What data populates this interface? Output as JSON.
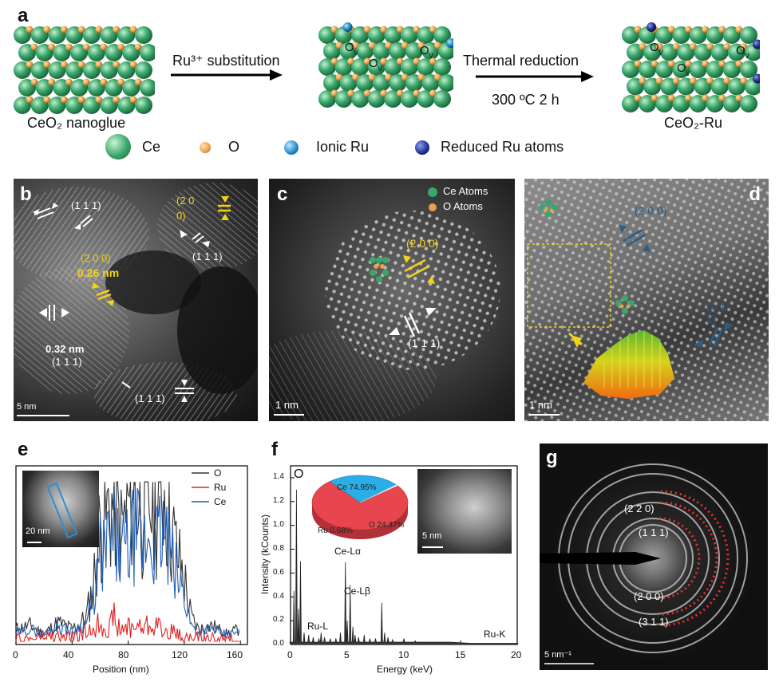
{
  "panel_a": {
    "letter": "a",
    "nanoglue_label": "CeO₂ nanoglue",
    "step1_label": "Ru³⁺ substitution",
    "step2_label": "Thermal reduction",
    "step2_sub": "300 ºC 2 h",
    "product_label": "CeO₂-Ru",
    "ov_label": "O",
    "ov_sub": "V",
    "legend": [
      {
        "label": "Ce",
        "color": "#3aa66a"
      },
      {
        "label": "O",
        "color": "#e8a04a"
      },
      {
        "label": "Ionic Ru",
        "color": "#1f88c8"
      },
      {
        "label": "Reduced Ru atoms",
        "color": "#1d2f8c"
      }
    ]
  },
  "panel_b": {
    "letter": "b",
    "labels": [
      "(1 1 1)",
      "(2 0 0)",
      "(2 0 0)",
      "0.26 nm",
      "(1 1 1)",
      "0.32 nm",
      "(1 1 1)",
      "(1 1 1)"
    ],
    "scale": "5 nm"
  },
  "panel_c": {
    "letter": "c",
    "legend": [
      "Ce Atoms",
      "O Atoms"
    ],
    "labels": [
      "(2 0 0)",
      "(1 1 1)"
    ],
    "scale": "1 nm"
  },
  "panel_d": {
    "letter": "d",
    "labels": [
      "(2 0 0)",
      "(1 1 1)"
    ],
    "scale": "1 nm"
  },
  "panel_e": {
    "letter": "e",
    "inset_scale": "20 nm",
    "xlabel": "Position (nm)",
    "xticks": [
      "0",
      "40",
      "80",
      "120",
      "160"
    ],
    "legend": [
      {
        "name": "O",
        "color": "#333333"
      },
      {
        "name": "Ru",
        "color": "#e02020"
      },
      {
        "name": "Ce",
        "color": "#1f5fb8"
      }
    ]
  },
  "panel_f": {
    "letter": "f",
    "xlabel": "Energy (keV)",
    "ylabel": "Intensity (kCounts)",
    "xticks": [
      "0",
      "5",
      "10",
      "15",
      "20"
    ],
    "yticks": [
      "0.0",
      "0.2",
      "0.4",
      "0.6",
      "0.8",
      "1.0",
      "1.2",
      "1.4"
    ],
    "peak_labels": [
      "O",
      "Ce-Lα",
      "Ce-Lβ",
      "Ru-L",
      "Ru-K"
    ],
    "pie": [
      {
        "label": "Ce 74.95%",
        "value": 74.95,
        "color": "#e8464f"
      },
      {
        "label": "O 24.37%",
        "value": 24.37,
        "color": "#2aaee6"
      },
      {
        "label": "Ru 0.68%",
        "value": 0.68,
        "color": "#ffffff"
      }
    ],
    "inset_scale": "5 nm"
  },
  "panel_g": {
    "letter": "g",
    "labels": [
      "(2 2 0)",
      "(1 1 1)",
      "(2 0 0)",
      "(3 1 1)"
    ],
    "scale": "5 nm⁻¹"
  },
  "chart_data": [
    {
      "type": "line",
      "panel": "e",
      "xlabel": "Position (nm)",
      "xlim": [
        0,
        165
      ],
      "series": [
        {
          "name": "O",
          "x": [
            0,
            10,
            20,
            30,
            40,
            50,
            55,
            60,
            65,
            70,
            75,
            80,
            85,
            90,
            95,
            100,
            105,
            110,
            115,
            120,
            125,
            130,
            140,
            150,
            160
          ],
          "values": [
            0.08,
            0.1,
            0.05,
            0.12,
            0.08,
            0.15,
            0.35,
            0.75,
            0.8,
            0.9,
            0.7,
            0.85,
            0.95,
            0.8,
            0.9,
            0.85,
            1.0,
            0.75,
            0.55,
            0.4,
            0.15,
            0.08,
            0.1,
            0.05,
            0.08
          ]
        },
        {
          "name": "Ru",
          "x": [
            0,
            20,
            40,
            50,
            60,
            65,
            70,
            75,
            80,
            90,
            100,
            105,
            110,
            120,
            140,
            160
          ],
          "values": [
            0.0,
            0.03,
            0.02,
            0.05,
            0.12,
            0.08,
            0.14,
            0.06,
            0.1,
            0.09,
            0.12,
            0.05,
            0.07,
            0.02,
            0.01,
            0.0
          ]
        },
        {
          "name": "Ce",
          "x": [
            0,
            10,
            20,
            30,
            40,
            50,
            55,
            60,
            65,
            70,
            75,
            80,
            85,
            90,
            95,
            100,
            105,
            110,
            115,
            120,
            125,
            130,
            140,
            150,
            160
          ],
          "values": [
            0.05,
            0.08,
            0.04,
            0.1,
            0.06,
            0.12,
            0.25,
            0.55,
            0.6,
            0.65,
            0.55,
            0.6,
            0.7,
            0.6,
            0.68,
            0.62,
            0.7,
            0.55,
            0.4,
            0.3,
            0.1,
            0.06,
            0.08,
            0.04,
            0.06
          ]
        }
      ]
    },
    {
      "type": "area",
      "panel": "f",
      "xlabel": "Energy (keV)",
      "ylabel": "Intensity (kCounts)",
      "xlim": [
        0,
        20
      ],
      "ylim": [
        0,
        1.5
      ],
      "series": [
        {
          "x": [
            0,
            0.3,
            0.52,
            0.7,
            0.88,
            1.2,
            1.6,
            2.0,
            2.5,
            2.7,
            3.0,
            3.5,
            4.0,
            4.4,
            4.84,
            5.0,
            5.26,
            5.5,
            5.7,
            6.0,
            6.5,
            7.0,
            7.5,
            8.05,
            8.3,
            8.6,
            9.0,
            10.0,
            11.0,
            12.0,
            14.0,
            16.0,
            18.0,
            20.0
          ],
          "values": [
            0.02,
            0.45,
            1.3,
            0.3,
            0.7,
            0.1,
            0.08,
            0.06,
            0.05,
            0.1,
            0.06,
            0.05,
            0.05,
            0.1,
            0.69,
            0.2,
            0.5,
            0.15,
            0.08,
            0.06,
            0.08,
            0.05,
            0.05,
            0.35,
            0.1,
            0.06,
            0.04,
            0.05,
            0.03,
            0.02,
            0.02,
            0.01,
            0.01,
            0.01
          ]
        }
      ]
    },
    {
      "type": "pie",
      "panel": "f-inset",
      "categories": [
        "Ce",
        "O",
        "Ru"
      ],
      "values": [
        74.95,
        24.37,
        0.68
      ]
    }
  ]
}
